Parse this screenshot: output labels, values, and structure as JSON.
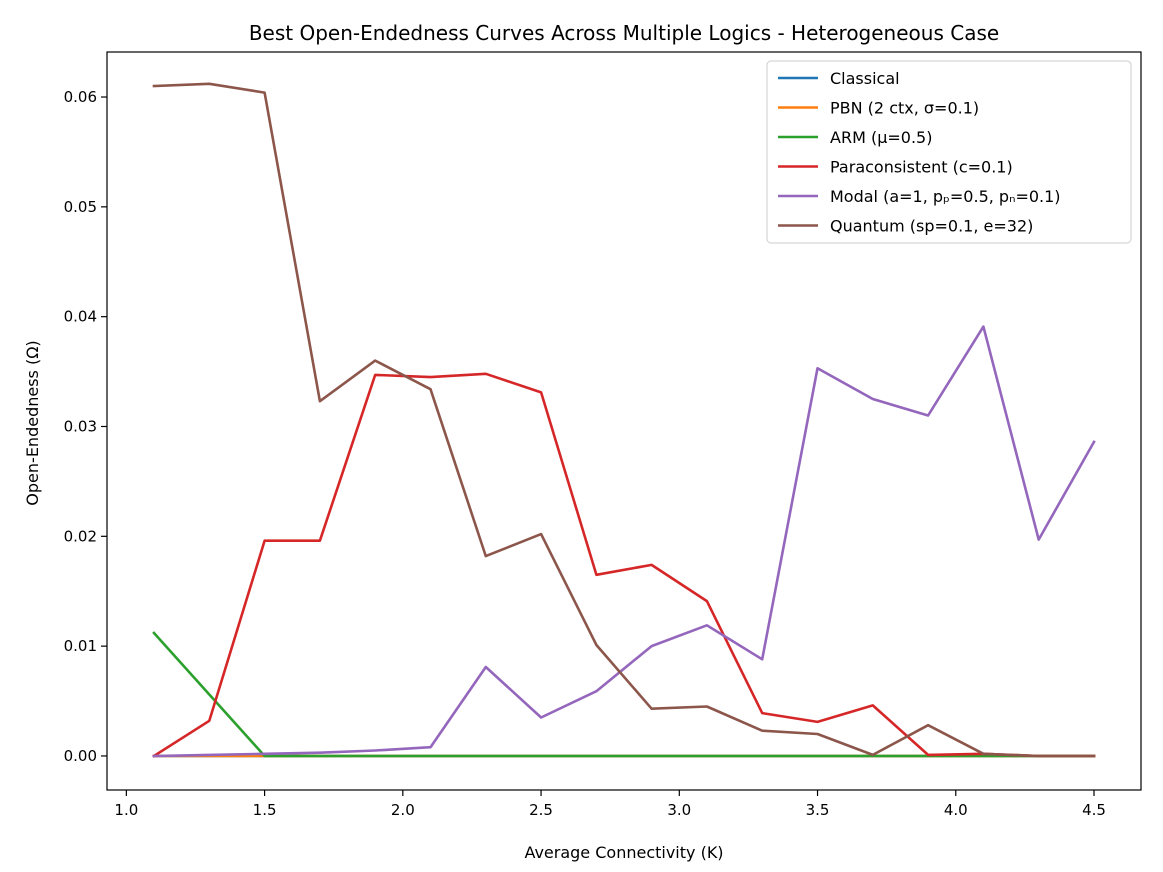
{
  "chart_data": {
    "type": "line",
    "title": "Best Open-Endedness Curves Across Multiple Logics - Heterogeneous Case",
    "xlabel": "Average Connectivity (K)",
    "ylabel": "Open-Endedness (Ω)",
    "xlim": [
      0.93,
      4.67
    ],
    "ylim": [
      -0.0031,
      0.0641
    ],
    "xticks": [
      1.0,
      1.5,
      2.0,
      2.5,
      3.0,
      3.5,
      4.0,
      4.5
    ],
    "xtick_labels": [
      "1.0",
      "1.5",
      "2.0",
      "2.5",
      "3.0",
      "3.5",
      "4.0",
      "4.5"
    ],
    "yticks": [
      0.0,
      0.01,
      0.02,
      0.03,
      0.04,
      0.05,
      0.06
    ],
    "ytick_labels": [
      "0.00",
      "0.01",
      "0.02",
      "0.03",
      "0.04",
      "0.05",
      "0.06"
    ],
    "grid": false,
    "legend_position": "top-right",
    "x": [
      1.1,
      1.3,
      1.5,
      1.7,
      1.9,
      2.1,
      2.3,
      2.5,
      2.7,
      2.9,
      3.1,
      3.3,
      3.5,
      3.7,
      3.9,
      4.1,
      4.3,
      4.5
    ],
    "series": [
      {
        "name": "Classical",
        "color": "#1f77b4",
        "values": [
          0,
          0,
          0,
          0,
          0,
          0,
          0,
          0,
          0,
          0,
          0,
          0,
          0,
          0,
          0,
          0,
          0,
          0
        ]
      },
      {
        "name": "PBN (2 ctx, σ=0.1)",
        "color": "#ff7f0e",
        "values": [
          0,
          0,
          0,
          0,
          0,
          0,
          0,
          0,
          0,
          0,
          0,
          0,
          0,
          0,
          0,
          0,
          0,
          0
        ]
      },
      {
        "name": "ARM (μ=0.5)",
        "color": "#2ca02c",
        "values": [
          0.0112,
          0.0056,
          0,
          0,
          0,
          0,
          0,
          0,
          0,
          0,
          0,
          0,
          0,
          0,
          0,
          0,
          0,
          0
        ]
      },
      {
        "name": "Paraconsistent (c=0.1)",
        "color": "#d62728",
        "values": [
          0,
          0.0032,
          0.0196,
          0.0196,
          0.0347,
          0.0345,
          0.0348,
          0.0331,
          0.0165,
          0.0174,
          0.0141,
          0.0039,
          0.0031,
          0.0046,
          0.0001,
          0.0002,
          0,
          0
        ]
      },
      {
        "name": "Modal (a=1, pₚ=0.5, pₙ=0.1)",
        "color": "#9467bd",
        "values": [
          0,
          0.0001,
          0.0002,
          0.0003,
          0.0005,
          0.0008,
          0.0081,
          0.0035,
          0.0059,
          0.01,
          0.0119,
          0.0088,
          0.0353,
          0.0325,
          0.031,
          0.0391,
          0.0197,
          0.0286
        ]
      },
      {
        "name": "Quantum (sp=0.1, e=32)",
        "color": "#8c564b",
        "values": [
          0.061,
          0.0612,
          0.0604,
          0.0323,
          0.036,
          0.0334,
          0.0182,
          0.0202,
          0.0101,
          0.0043,
          0.0045,
          0.0023,
          0.002,
          0.0001,
          0.0028,
          0.0002,
          0,
          0
        ]
      }
    ]
  }
}
